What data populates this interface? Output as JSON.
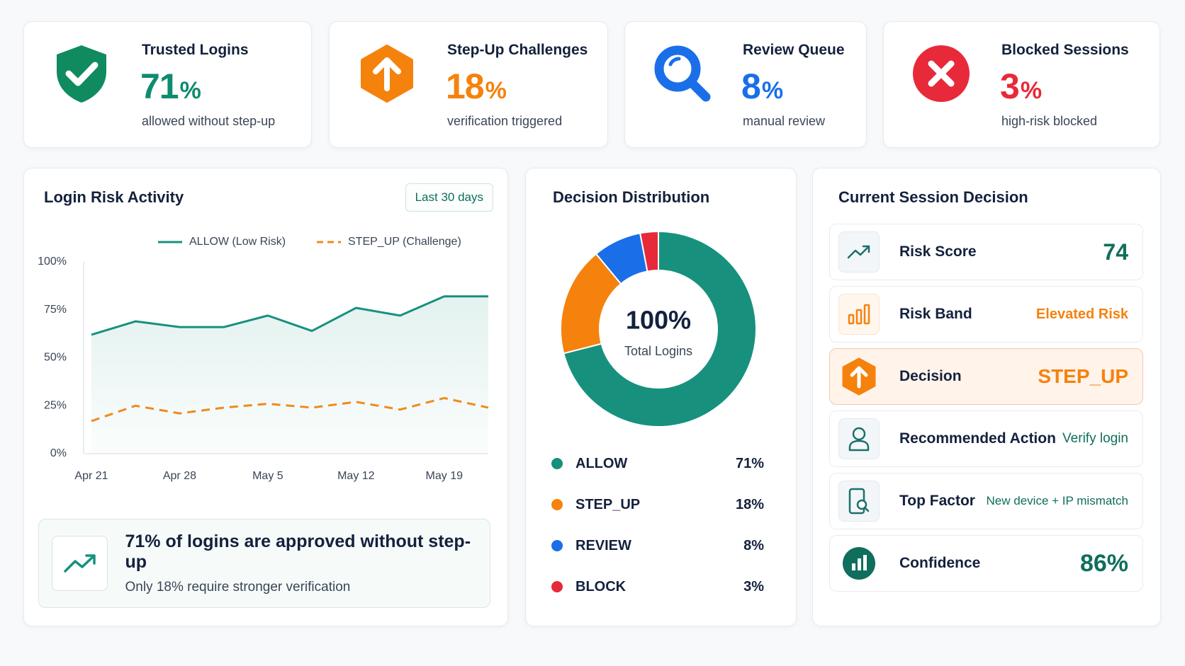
{
  "kpis": [
    {
      "title": "Trusted Logins",
      "value": "71",
      "unit": "%",
      "subtitle": "allowed without step-up",
      "color": "#0f8b6f"
    },
    {
      "title": "Step-Up Challenges",
      "value": "18",
      "unit": "%",
      "subtitle": "verification triggered",
      "color": "#f5820d"
    },
    {
      "title": "Review Queue",
      "value": "8",
      "unit": "%",
      "subtitle": "manual review",
      "color": "#1a6fe8"
    },
    {
      "title": "Blocked Sessions",
      "value": "3",
      "unit": "%",
      "subtitle": "high-risk blocked",
      "color": "#e8293a"
    }
  ],
  "chart_data": [
    {
      "type": "line",
      "title": "Login Risk Activity",
      "range_button": "Last 30 days",
      "categories": [
        "Apr 21",
        null,
        "Apr 28",
        null,
        "May 5",
        null,
        "May 12",
        null,
        "May 19",
        null
      ],
      "series": [
        {
          "name": "ALLOW (Low Risk)",
          "color": "#17917d",
          "dash": false,
          "values": [
            62,
            69,
            66,
            66,
            72,
            64,
            76,
            72,
            82,
            82
          ]
        },
        {
          "name": "STEP_UP (Challenge)",
          "color": "#f08a1c",
          "dash": true,
          "values": [
            17,
            25,
            21,
            24,
            26,
            24,
            27,
            23,
            29,
            24
          ]
        }
      ],
      "ylim": [
        0,
        100
      ],
      "yticks": [
        {
          "value": 0,
          "label": "0%"
        },
        {
          "value": 25,
          "label": "25%"
        },
        {
          "value": 50,
          "label": "50%"
        },
        {
          "value": 75,
          "label": "75%"
        },
        {
          "value": 100,
          "label": "100%"
        }
      ],
      "grid": false
    },
    {
      "type": "pie",
      "title": "Decision Distribution",
      "center_value": "100%",
      "center_label": "Total Logins",
      "categories": [
        "ALLOW",
        "STEP_UP",
        "REVIEW",
        "BLOCK"
      ],
      "values": [
        71,
        18,
        8,
        3
      ],
      "value_labels": [
        "71%",
        "18%",
        "8%",
        "3%"
      ],
      "colors": [
        "#17917d",
        "#f5820d",
        "#1a6fe8",
        "#e8293a"
      ]
    }
  ],
  "insight": {
    "headline": "71% of logins are approved without step-up",
    "detail": "Only 18% require stronger verification"
  },
  "session": {
    "title": "Current Session Decision",
    "rows": [
      {
        "label": "Risk Score",
        "value": "74"
      },
      {
        "label": "Risk Band",
        "value": "Elevated Risk"
      },
      {
        "label": "Decision",
        "value": "STEP_UP"
      },
      {
        "label": "Recommended Action",
        "value": "Verify login"
      },
      {
        "label": "Top Factor",
        "value": "New device + IP mismatch"
      },
      {
        "label": "Confidence",
        "value": "86%"
      }
    ]
  }
}
